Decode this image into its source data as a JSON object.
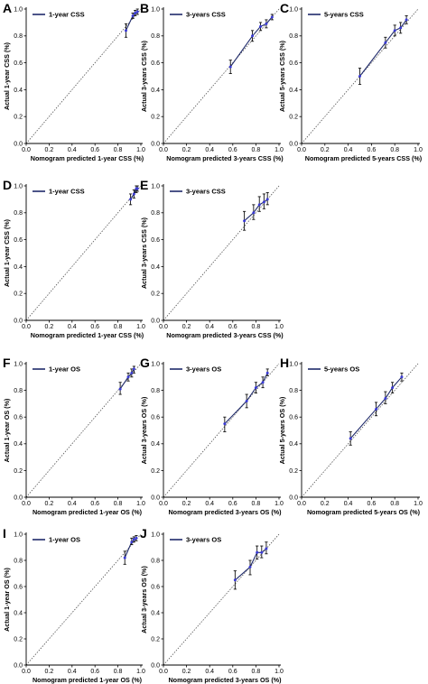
{
  "chart_data": [
    {
      "panel": "A",
      "type": "line",
      "legend": "1-year CSS",
      "xlabel": "Nomogram predicted 1-year CSS (%)",
      "ylabel": "Actual 1-year CSS (%)",
      "xlim": [
        0,
        1
      ],
      "ylim": [
        0,
        1
      ],
      "ticks": [
        "0.0",
        "0.2",
        "0.4",
        "0.6",
        "0.8",
        "1.0"
      ],
      "points": [
        {
          "x": 0.87,
          "y": 0.84,
          "lo": 0.79,
          "hi": 0.89
        },
        {
          "x": 0.93,
          "y": 0.95,
          "lo": 0.93,
          "hi": 0.97
        },
        {
          "x": 0.95,
          "y": 0.97,
          "lo": 0.95,
          "hi": 0.99
        },
        {
          "x": 0.97,
          "y": 0.98,
          "lo": 0.96,
          "hi": 1.0
        }
      ]
    },
    {
      "panel": "B",
      "type": "line",
      "legend": "3-years CSS",
      "xlabel": "Nomogram predicted 3-years CSS (%)",
      "ylabel": "Actual 3-years CSS (%)",
      "xlim": [
        0,
        1
      ],
      "ylim": [
        0,
        1
      ],
      "ticks": [
        "0.0",
        "0.2",
        "0.4",
        "0.6",
        "0.8",
        "1.0"
      ],
      "points": [
        {
          "x": 0.58,
          "y": 0.57,
          "lo": 0.52,
          "hi": 0.62
        },
        {
          "x": 0.77,
          "y": 0.8,
          "lo": 0.76,
          "hi": 0.84
        },
        {
          "x": 0.84,
          "y": 0.87,
          "lo": 0.84,
          "hi": 0.9
        },
        {
          "x": 0.89,
          "y": 0.89,
          "lo": 0.86,
          "hi": 0.92
        },
        {
          "x": 0.94,
          "y": 0.94,
          "lo": 0.92,
          "hi": 0.96
        }
      ]
    },
    {
      "panel": "C",
      "type": "line",
      "legend": "5-years CSS",
      "xlabel": "Nomogram predicted 5-years CSS (%)",
      "ylabel": "Actual 5-years CSS (%)",
      "xlim": [
        0,
        1
      ],
      "ylim": [
        0,
        1
      ],
      "ticks": [
        "0.0",
        "0.2",
        "0.4",
        "0.6",
        "0.8",
        "1.0"
      ],
      "points": [
        {
          "x": 0.5,
          "y": 0.5,
          "lo": 0.44,
          "hi": 0.56
        },
        {
          "x": 0.72,
          "y": 0.75,
          "lo": 0.71,
          "hi": 0.79
        },
        {
          "x": 0.8,
          "y": 0.84,
          "lo": 0.8,
          "hi": 0.88
        },
        {
          "x": 0.85,
          "y": 0.86,
          "lo": 0.82,
          "hi": 0.9
        },
        {
          "x": 0.9,
          "y": 0.92,
          "lo": 0.89,
          "hi": 0.95
        }
      ]
    },
    {
      "panel": "D",
      "type": "line",
      "legend": "1-year CSS",
      "xlabel": "Nomogram predicted 1-year CSS (%)",
      "ylabel": "Actual 1-year CSS (%)",
      "xlim": [
        0,
        1
      ],
      "ylim": [
        0,
        1
      ],
      "ticks": [
        "0.0",
        "0.2",
        "0.4",
        "0.6",
        "0.8",
        "1.0"
      ],
      "points": [
        {
          "x": 0.91,
          "y": 0.9,
          "lo": 0.86,
          "hi": 0.94
        },
        {
          "x": 0.94,
          "y": 0.94,
          "lo": 0.91,
          "hi": 0.97
        },
        {
          "x": 0.96,
          "y": 0.98,
          "lo": 0.95,
          "hi": 1.0
        },
        {
          "x": 0.97,
          "y": 0.98,
          "lo": 0.96,
          "hi": 1.0
        }
      ]
    },
    {
      "panel": "E",
      "type": "line",
      "legend": "3-years CSS",
      "xlabel": "Nomogram predicted 3-years CSS (%)",
      "ylabel": "Actual 3-years CSS (%)",
      "xlim": [
        0,
        1
      ],
      "ylim": [
        0,
        1
      ],
      "ticks": [
        "0.0",
        "0.2",
        "0.4",
        "0.6",
        "0.8",
        "1.0"
      ],
      "points": [
        {
          "x": 0.7,
          "y": 0.74,
          "lo": 0.67,
          "hi": 0.81
        },
        {
          "x": 0.78,
          "y": 0.8,
          "lo": 0.75,
          "hi": 0.86
        },
        {
          "x": 0.83,
          "y": 0.86,
          "lo": 0.81,
          "hi": 0.92
        },
        {
          "x": 0.87,
          "y": 0.88,
          "lo": 0.83,
          "hi": 0.94
        },
        {
          "x": 0.9,
          "y": 0.9,
          "lo": 0.86,
          "hi": 0.95
        }
      ]
    },
    {
      "panel": "F",
      "type": "line",
      "legend": "1-year OS",
      "xlabel": "Nomogram predicted 1-year OS (%)",
      "ylabel": "Actual 1-year OS (%)",
      "xlim": [
        0,
        1
      ],
      "ylim": [
        0,
        1
      ],
      "ticks": [
        "0.0",
        "0.2",
        "0.4",
        "0.6",
        "0.8",
        "1.0"
      ],
      "points": [
        {
          "x": 0.82,
          "y": 0.81,
          "lo": 0.77,
          "hi": 0.86
        },
        {
          "x": 0.89,
          "y": 0.9,
          "lo": 0.87,
          "hi": 0.93
        },
        {
          "x": 0.92,
          "y": 0.93,
          "lo": 0.9,
          "hi": 0.96
        },
        {
          "x": 0.94,
          "y": 0.96,
          "lo": 0.93,
          "hi": 0.98
        }
      ]
    },
    {
      "panel": "G",
      "type": "line",
      "legend": "3-years OS",
      "xlabel": "Nomogram predicted 3-years OS (%)",
      "ylabel": "Actual 3-years OS (%)",
      "xlim": [
        0,
        1
      ],
      "ylim": [
        0,
        1
      ],
      "ticks": [
        "0.0",
        "0.2",
        "0.4",
        "0.6",
        "0.8",
        "1.0"
      ],
      "points": [
        {
          "x": 0.53,
          "y": 0.55,
          "lo": 0.49,
          "hi": 0.6
        },
        {
          "x": 0.72,
          "y": 0.72,
          "lo": 0.67,
          "hi": 0.77
        },
        {
          "x": 0.8,
          "y": 0.82,
          "lo": 0.78,
          "hi": 0.86
        },
        {
          "x": 0.86,
          "y": 0.86,
          "lo": 0.82,
          "hi": 0.9
        },
        {
          "x": 0.9,
          "y": 0.93,
          "lo": 0.91,
          "hi": 0.96
        }
      ]
    },
    {
      "panel": "H",
      "type": "line",
      "legend": "5-years OS",
      "xlabel": "Nomogram predicted 5-years OS (%)",
      "ylabel": "Actual 5-years OS (%)",
      "xlim": [
        0,
        1
      ],
      "ylim": [
        0,
        1
      ],
      "ticks": [
        "0.0",
        "0.2",
        "0.4",
        "0.6",
        "0.8",
        "1.0"
      ],
      "points": [
        {
          "x": 0.42,
          "y": 0.44,
          "lo": 0.39,
          "hi": 0.49
        },
        {
          "x": 0.64,
          "y": 0.66,
          "lo": 0.61,
          "hi": 0.71
        },
        {
          "x": 0.72,
          "y": 0.74,
          "lo": 0.7,
          "hi": 0.79
        },
        {
          "x": 0.78,
          "y": 0.82,
          "lo": 0.78,
          "hi": 0.86
        },
        {
          "x": 0.86,
          "y": 0.9,
          "lo": 0.87,
          "hi": 0.93
        }
      ]
    },
    {
      "panel": "I",
      "type": "line",
      "legend": "1-year OS",
      "xlabel": "Nomogram predicted 1-year OS (%)",
      "ylabel": "Actual 1-year OS (%)",
      "xlim": [
        0,
        1
      ],
      "ylim": [
        0,
        1
      ],
      "ticks": [
        "0.0",
        "0.2",
        "0.4",
        "0.6",
        "0.8",
        "1.0"
      ],
      "points": [
        {
          "x": 0.86,
          "y": 0.82,
          "lo": 0.77,
          "hi": 0.87
        },
        {
          "x": 0.92,
          "y": 0.94,
          "lo": 0.92,
          "hi": 0.97
        },
        {
          "x": 0.94,
          "y": 0.96,
          "lo": 0.94,
          "hi": 0.98
        },
        {
          "x": 0.96,
          "y": 0.97,
          "lo": 0.95,
          "hi": 0.99
        }
      ]
    },
    {
      "panel": "J",
      "type": "line",
      "legend": "3-years OS",
      "xlabel": "Nomogram predicted 3-years OS (%)",
      "ylabel": "Actual 3-years OS (%)",
      "xlim": [
        0,
        1
      ],
      "ylim": [
        0,
        1
      ],
      "ticks": [
        "0.0",
        "0.2",
        "0.4",
        "0.6",
        "0.8",
        "1.0"
      ],
      "points": [
        {
          "x": 0.62,
          "y": 0.65,
          "lo": 0.58,
          "hi": 0.72
        },
        {
          "x": 0.75,
          "y": 0.75,
          "lo": 0.69,
          "hi": 0.8
        },
        {
          "x": 0.81,
          "y": 0.86,
          "lo": 0.81,
          "hi": 0.91
        },
        {
          "x": 0.85,
          "y": 0.86,
          "lo": 0.82,
          "hi": 0.91
        },
        {
          "x": 0.89,
          "y": 0.89,
          "lo": 0.85,
          "hi": 0.94
        }
      ]
    }
  ],
  "colors": {
    "calibration_line": "#1f2a6b",
    "point_marker": "#3b3bd6",
    "error_bar": "#111111",
    "reference_line": "#555555",
    "axis": "#000000"
  }
}
